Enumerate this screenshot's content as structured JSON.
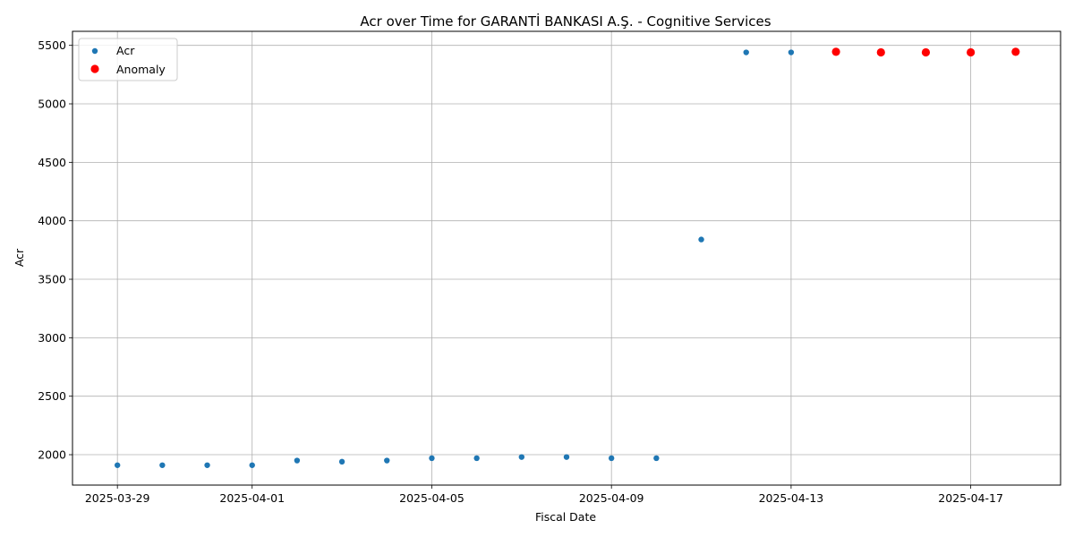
{
  "chart_data": {
    "type": "scatter",
    "title": "Acr over Time for GARANTİ BANKASI A.Ş. - Cognitive Services",
    "xlabel": "Fiscal Date",
    "ylabel": "Acr",
    "xlim": [
      "2025-03-28",
      "2025-04-19"
    ],
    "ylim": [
      1740,
      5620
    ],
    "x_ticks": [
      "2025-03-29",
      "2025-04-01",
      "2025-04-05",
      "2025-04-09",
      "2025-04-13",
      "2025-04-17"
    ],
    "y_ticks": [
      2000,
      2500,
      3000,
      3500,
      4000,
      4500,
      5000,
      5500
    ],
    "grid": true,
    "legend_position": "top-left",
    "series": [
      {
        "name": "Acr",
        "color": "#1f77b4",
        "marker_size": "small",
        "points": [
          {
            "x": "2025-03-29",
            "y": 1910
          },
          {
            "x": "2025-03-30",
            "y": 1910
          },
          {
            "x": "2025-03-31",
            "y": 1910
          },
          {
            "x": "2025-04-01",
            "y": 1910
          },
          {
            "x": "2025-04-02",
            "y": 1950
          },
          {
            "x": "2025-04-03",
            "y": 1940
          },
          {
            "x": "2025-04-04",
            "y": 1950
          },
          {
            "x": "2025-04-05",
            "y": 1970
          },
          {
            "x": "2025-04-06",
            "y": 1970
          },
          {
            "x": "2025-04-07",
            "y": 1980
          },
          {
            "x": "2025-04-08",
            "y": 1980
          },
          {
            "x": "2025-04-09",
            "y": 1970
          },
          {
            "x": "2025-04-10",
            "y": 1970
          },
          {
            "x": "2025-04-11",
            "y": 3840
          },
          {
            "x": "2025-04-12",
            "y": 5440
          },
          {
            "x": "2025-04-13",
            "y": 5440
          },
          {
            "x": "2025-04-14",
            "y": 5445
          },
          {
            "x": "2025-04-15",
            "y": 5440
          },
          {
            "x": "2025-04-16",
            "y": 5440
          },
          {
            "x": "2025-04-17",
            "y": 5440
          },
          {
            "x": "2025-04-18",
            "y": 5445
          }
        ]
      },
      {
        "name": "Anomaly",
        "color": "#ff0000",
        "marker_size": "large",
        "points": [
          {
            "x": "2025-04-14",
            "y": 5445
          },
          {
            "x": "2025-04-15",
            "y": 5440
          },
          {
            "x": "2025-04-16",
            "y": 5440
          },
          {
            "x": "2025-04-17",
            "y": 5440
          },
          {
            "x": "2025-04-18",
            "y": 5445
          }
        ]
      }
    ]
  }
}
